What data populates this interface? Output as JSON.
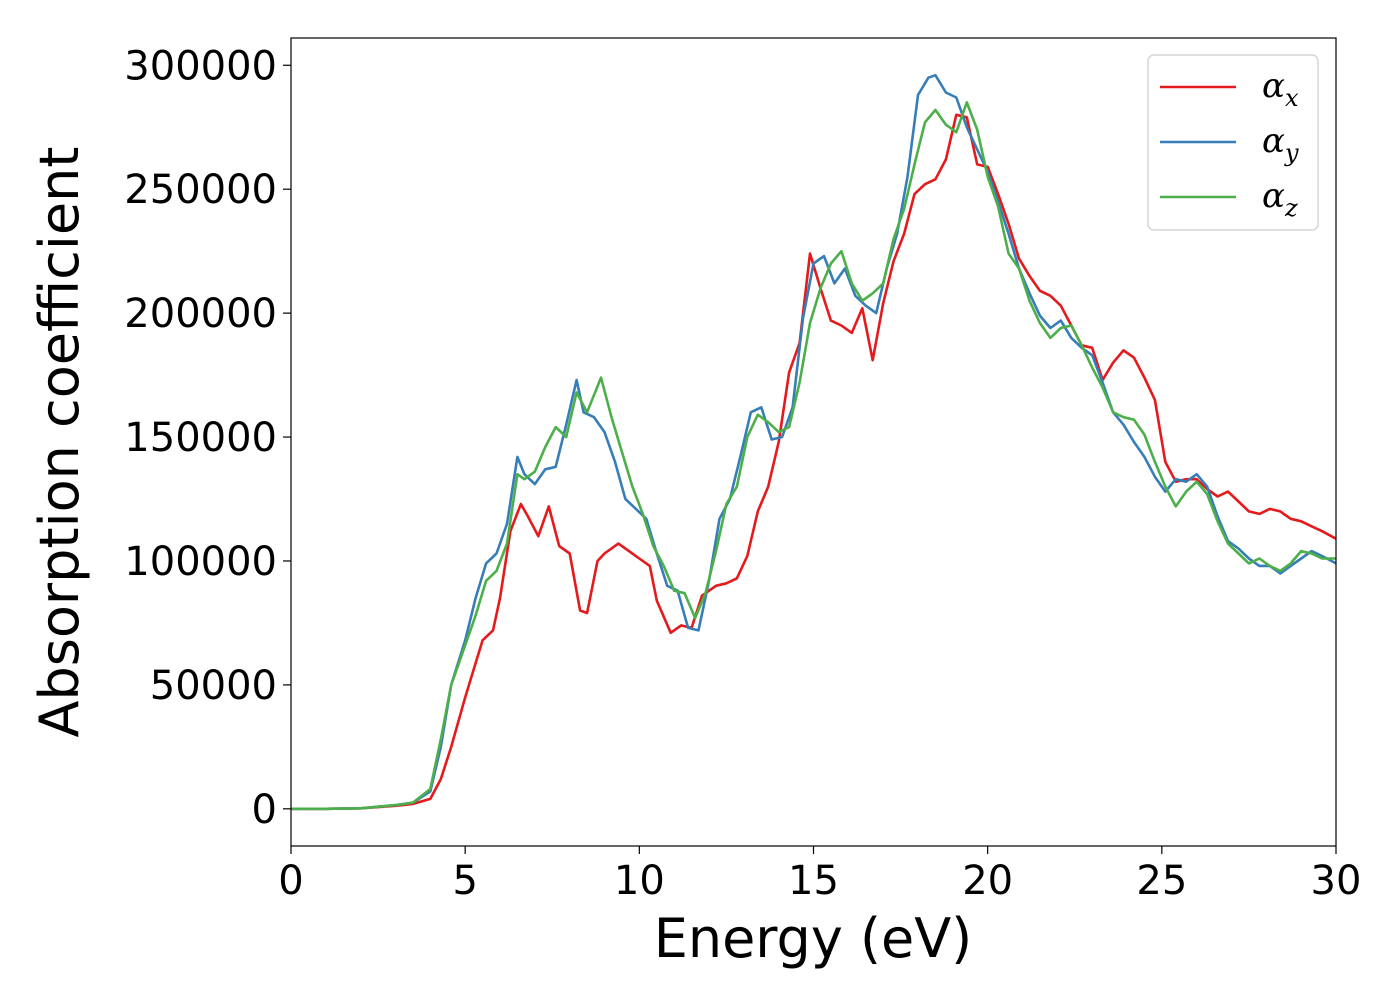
{
  "chart_data": {
    "type": "line",
    "xlabel": "Energy (eV)",
    "ylabel": "Absorption coefficient",
    "xlim": [
      0,
      30
    ],
    "ylim": [
      -15000,
      311000
    ],
    "xticks": [
      0,
      5,
      10,
      15,
      20,
      25,
      30
    ],
    "yticks": [
      0,
      50000,
      100000,
      150000,
      200000,
      250000,
      300000
    ],
    "grid": false,
    "legend_position": "top-right",
    "series": [
      {
        "name": "α_x",
        "name_base": "α",
        "name_sub": "x",
        "color": "#e41a1c",
        "x": [
          0,
          1,
          2,
          3,
          3.5,
          4,
          4.3,
          4.6,
          5,
          5.5,
          5.8,
          6.0,
          6.3,
          6.6,
          6.8,
          7.1,
          7.4,
          7.7,
          8.0,
          8.3,
          8.5,
          8.8,
          9.0,
          9.4,
          9.7,
          10.0,
          10.3,
          10.5,
          10.9,
          11.2,
          11.5,
          11.8,
          12.2,
          12.5,
          12.8,
          13.1,
          13.4,
          13.7,
          14.0,
          14.3,
          14.6,
          14.9,
          15.2,
          15.5,
          15.8,
          16.1,
          16.4,
          16.7,
          17.0,
          17.3,
          17.6,
          17.9,
          18.2,
          18.5,
          18.8,
          19.1,
          19.4,
          19.7,
          20.0,
          20.3,
          20.6,
          20.9,
          21.2,
          21.5,
          21.8,
          22.1,
          22.4,
          22.7,
          23.0,
          23.3,
          23.6,
          23.9,
          24.2,
          24.5,
          24.8,
          25.1,
          25.4,
          25.7,
          26.0,
          26.3,
          26.6,
          26.9,
          27.2,
          27.5,
          27.8,
          28.1,
          28.4,
          28.7,
          29.0,
          29.3,
          29.6,
          30.0
        ],
        "y": [
          0,
          0,
          200,
          1200,
          2000,
          4000,
          12000,
          25000,
          45000,
          68000,
          72000,
          85000,
          112000,
          123000,
          118000,
          110000,
          122000,
          106000,
          103000,
          80000,
          79000,
          100000,
          103000,
          107000,
          104000,
          101000,
          98000,
          84000,
          71000,
          74000,
          73000,
          86000,
          90000,
          91000,
          93000,
          102000,
          120000,
          130000,
          148000,
          176000,
          188000,
          224000,
          210000,
          197000,
          195000,
          192000,
          202000,
          181000,
          204000,
          221000,
          232000,
          248000,
          252000,
          254000,
          262000,
          280000,
          279000,
          260000,
          259000,
          248000,
          236000,
          222000,
          215000,
          209000,
          207000,
          203000,
          195000,
          187000,
          186000,
          173000,
          180000,
          185000,
          182000,
          174000,
          165000,
          140000,
          132000,
          133000,
          133000,
          129000,
          126000,
          128000,
          124000,
          120000,
          119000,
          121000,
          120000,
          117000,
          116000,
          114000,
          112000,
          109000
        ]
      },
      {
        "name": "α_y",
        "name_base": "α",
        "name_sub": "y",
        "color": "#377eb8",
        "x": [
          0,
          1,
          2,
          3,
          3.5,
          4,
          4.3,
          4.6,
          5,
          5.3,
          5.6,
          5.9,
          6.2,
          6.5,
          6.7,
          7.0,
          7.3,
          7.6,
          7.9,
          8.2,
          8.4,
          8.7,
          9.0,
          9.3,
          9.6,
          9.9,
          10.2,
          10.5,
          10.8,
          11.1,
          11.4,
          11.7,
          12.0,
          12.3,
          12.6,
          12.9,
          13.2,
          13.5,
          13.8,
          14.1,
          14.4,
          14.7,
          15.0,
          15.3,
          15.6,
          15.9,
          16.2,
          16.5,
          16.8,
          17.1,
          17.4,
          17.7,
          18.0,
          18.3,
          18.5,
          18.8,
          19.1,
          19.4,
          19.7,
          20.0,
          20.3,
          20.6,
          20.9,
          21.2,
          21.5,
          21.8,
          22.1,
          22.4,
          22.7,
          23.0,
          23.3,
          23.6,
          23.9,
          24.2,
          24.5,
          24.8,
          25.1,
          25.4,
          25.7,
          26.0,
          26.3,
          26.6,
          26.9,
          27.2,
          27.5,
          27.8,
          28.1,
          28.4,
          28.7,
          29.0,
          29.3,
          29.6,
          30.0
        ],
        "y": [
          0,
          0,
          200,
          1500,
          2500,
          7000,
          25000,
          50000,
          68000,
          85000,
          99000,
          103000,
          115000,
          142000,
          135000,
          131000,
          137000,
          138000,
          155000,
          173000,
          160000,
          158000,
          152000,
          140000,
          125000,
          121000,
          117000,
          103000,
          90000,
          88000,
          73000,
          72000,
          92000,
          117000,
          125000,
          142000,
          160000,
          162000,
          149000,
          150000,
          162000,
          198000,
          220000,
          223000,
          212000,
          218000,
          207000,
          203000,
          200000,
          218000,
          232000,
          255000,
          288000,
          295000,
          296000,
          289000,
          287000,
          275000,
          266000,
          257000,
          245000,
          232000,
          218000,
          208000,
          199000,
          194000,
          197000,
          190000,
          186000,
          183000,
          172000,
          160000,
          155000,
          148000,
          142000,
          134000,
          128000,
          133000,
          132000,
          135000,
          130000,
          118000,
          108000,
          105000,
          101000,
          98000,
          98000,
          95000,
          98000,
          101000,
          104000,
          102000,
          99000
        ]
      },
      {
        "name": "α_z",
        "name_base": "α",
        "name_sub": "z",
        "color": "#4daf4a",
        "x": [
          0,
          1,
          2,
          3,
          3.5,
          4,
          4.3,
          4.6,
          5,
          5.3,
          5.6,
          5.9,
          6.2,
          6.5,
          6.7,
          7.0,
          7.3,
          7.6,
          7.9,
          8.2,
          8.5,
          8.9,
          9.2,
          9.5,
          9.8,
          10.1,
          10.4,
          10.7,
          11.0,
          11.3,
          11.6,
          11.9,
          12.2,
          12.5,
          12.8,
          13.1,
          13.4,
          13.7,
          14.0,
          14.3,
          14.6,
          14.9,
          15.2,
          15.5,
          15.8,
          16.1,
          16.4,
          16.7,
          17.0,
          17.3,
          17.6,
          17.9,
          18.2,
          18.5,
          18.8,
          19.1,
          19.4,
          19.7,
          20.0,
          20.3,
          20.6,
          20.9,
          21.2,
          21.5,
          21.8,
          22.1,
          22.4,
          22.7,
          23.0,
          23.3,
          23.6,
          23.9,
          24.2,
          24.5,
          24.8,
          25.1,
          25.4,
          25.7,
          26.0,
          26.3,
          26.6,
          26.9,
          27.2,
          27.5,
          27.8,
          28.1,
          28.4,
          28.7,
          29.0,
          29.3,
          29.6,
          30.0
        ],
        "y": [
          0,
          0,
          200,
          1500,
          2500,
          8000,
          28000,
          50000,
          66000,
          78000,
          92000,
          96000,
          107000,
          135000,
          133000,
          136000,
          146000,
          154000,
          150000,
          168000,
          160000,
          174000,
          158000,
          144000,
          130000,
          119000,
          106000,
          98000,
          88000,
          87000,
          77000,
          87000,
          104000,
          123000,
          130000,
          150000,
          159000,
          156000,
          152000,
          154000,
          172000,
          196000,
          210000,
          220000,
          225000,
          212000,
          205000,
          208000,
          212000,
          230000,
          242000,
          260000,
          277000,
          282000,
          276000,
          273000,
          285000,
          274000,
          255000,
          243000,
          224000,
          218000,
          205000,
          196000,
          190000,
          194000,
          195000,
          187000,
          178000,
          170000,
          160000,
          158000,
          157000,
          151000,
          140000,
          130000,
          122000,
          128000,
          132000,
          127000,
          116000,
          107000,
          103000,
          99000,
          101000,
          98000,
          96000,
          99000,
          104000,
          103000,
          101000,
          101000
        ]
      }
    ]
  }
}
